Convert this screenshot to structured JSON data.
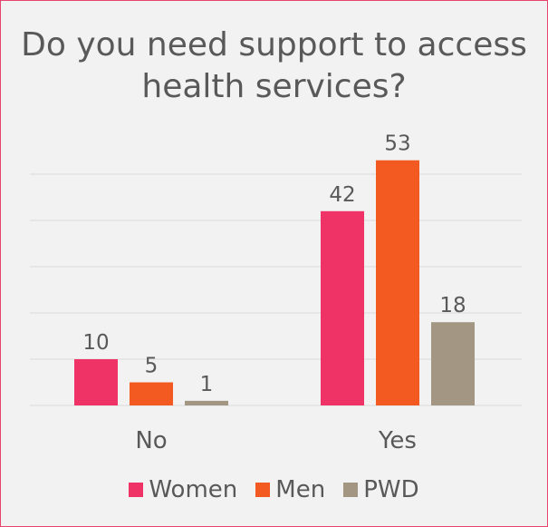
{
  "chart_data": {
    "type": "bar",
    "title": "Do you need support to access health services?",
    "categories": [
      "No",
      "Yes"
    ],
    "series": [
      {
        "name": "Women",
        "values": [
          10,
          42
        ],
        "color": "#f03366"
      },
      {
        "name": "Men",
        "values": [
          5,
          53
        ],
        "color": "#f25a22"
      },
      {
        "name": "PWD",
        "values": [
          1,
          18
        ],
        "color": "#a39784"
      }
    ],
    "ylim": [
      0,
      60
    ],
    "grid": true,
    "legend": "bottom",
    "data_labels": true
  },
  "colors": {
    "border": "#e8456e",
    "background": "#f2f2f2",
    "text": "#595959",
    "gridline": "#d9d9d9"
  }
}
